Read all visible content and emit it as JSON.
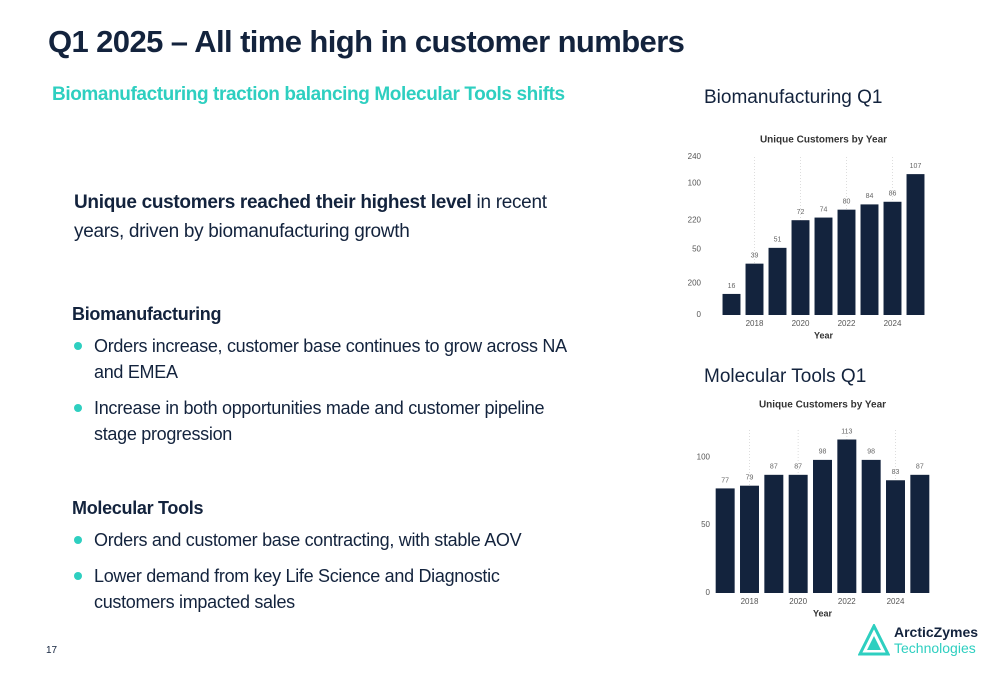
{
  "slide": {
    "title": "Q1 2025 – All time high in customer numbers",
    "subtitle": "Biomanufacturing traction balancing Molecular Tools shifts",
    "intro": {
      "bold": "Unique customers reached their highest level",
      "rest": " in recent years, driven by biomanufacturing growth"
    },
    "sections": [
      {
        "heading": "Biomanufacturing",
        "bullets": [
          "Orders increase, customer base continues to grow across NA and EMEA",
          "Increase in both opportunities made and customer pipeline stage progression"
        ]
      },
      {
        "heading": "Molecular Tools",
        "bullets": [
          "Orders and customer base contracting, with stable AOV",
          "Lower demand from key Life Science and Diagnostic customers impacted sales"
        ]
      }
    ],
    "page_number": "17",
    "logo": {
      "name": "ArcticZymes",
      "sub": "Technologies"
    }
  },
  "chart_data": [
    {
      "type": "bar",
      "label": "Biomanufacturing Q1",
      "title": "Unique Customers by Year",
      "x_label": "Year",
      "x": [
        2017,
        2018,
        2019,
        2020,
        2021,
        2022,
        2023,
        2024,
        2025
      ],
      "values": [
        16,
        39,
        51,
        72,
        74,
        80,
        84,
        86,
        107
      ],
      "color": "#13233d",
      "xlim": [
        2016.5,
        2025.5
      ],
      "xticks": [
        2018,
        2020,
        2022,
        2024
      ],
      "ylim": [
        0,
        120
      ],
      "yticks": [
        0,
        50,
        100
      ],
      "y2lim": [
        190,
        240
      ],
      "y2ticks": [
        200,
        220,
        240
      ],
      "grid": true
    },
    {
      "type": "bar",
      "label": "Molecular Tools Q1",
      "title": "Unique Customers by Year",
      "x_label": "Year",
      "x": [
        2017,
        2018,
        2019,
        2020,
        2021,
        2022,
        2023,
        2024,
        2025
      ],
      "values": [
        77,
        79,
        87,
        87,
        98,
        113,
        98,
        83,
        87
      ],
      "color": "#13233d",
      "xlim": [
        2016.5,
        2025.5
      ],
      "xticks": [
        2018,
        2020,
        2022,
        2024
      ],
      "ylim": [
        0,
        120
      ],
      "yticks": [
        0,
        50,
        100
      ],
      "grid": true
    }
  ]
}
